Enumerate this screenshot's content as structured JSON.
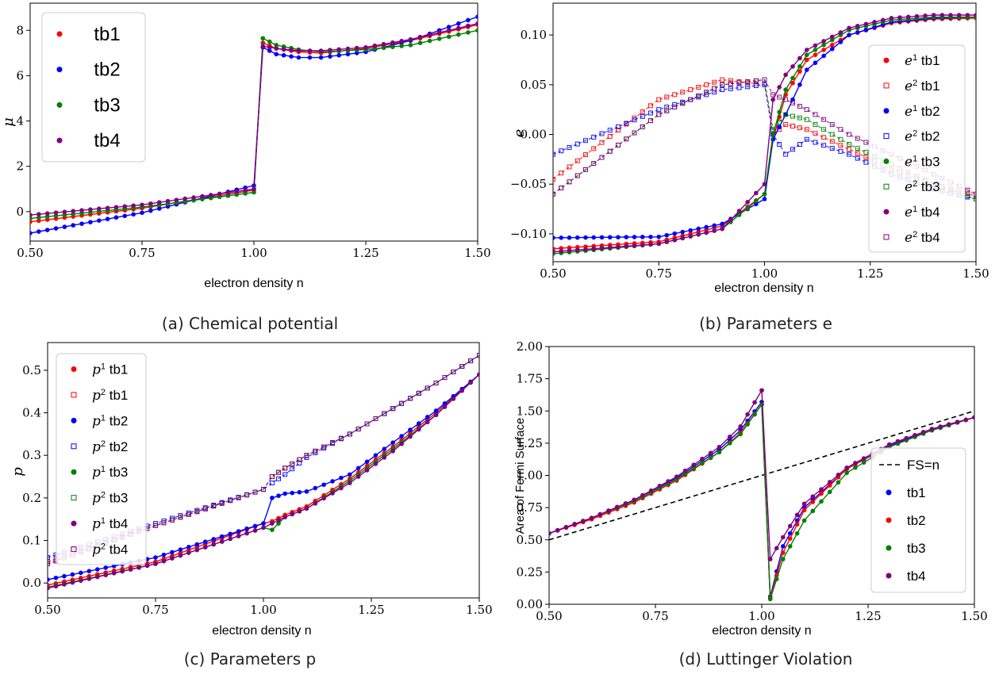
{
  "colors": {
    "tb1": "#ff0000",
    "tb2": "#0000ff",
    "tb3": "#008000",
    "tb4": "#800080"
  },
  "chart_data": [
    {
      "id": "a",
      "type": "line",
      "caption": "(a) Chemical potential",
      "xlabel": "electron density n",
      "ylabel": "μ",
      "xlim": [
        0.5,
        1.5
      ],
      "ylim": [
        -1.3,
        9.2
      ],
      "xticks": [
        "0.50",
        "0.75",
        "1.00",
        "1.25",
        "1.50"
      ],
      "yticks": [
        "0",
        "2",
        "4",
        "6",
        "8"
      ],
      "legend_position": "upper-left",
      "series": [
        {
          "name": "tb1",
          "color": "#ff0000",
          "x": [
            0.5,
            0.75,
            1.0,
            1.02,
            1.05,
            1.1,
            1.15,
            1.25,
            1.35,
            1.5
          ],
          "y": [
            -0.45,
            0.15,
            0.95,
            7.45,
            7.2,
            7.05,
            7.0,
            7.2,
            7.55,
            8.25
          ]
        },
        {
          "name": "tb2",
          "color": "#0000ff",
          "x": [
            0.5,
            0.75,
            1.0,
            1.02,
            1.05,
            1.1,
            1.15,
            1.25,
            1.35,
            1.5
          ],
          "y": [
            -0.95,
            -0.05,
            1.15,
            7.25,
            6.95,
            6.8,
            6.8,
            7.05,
            7.55,
            8.6
          ]
        },
        {
          "name": "tb3",
          "color": "#008000",
          "x": [
            0.5,
            0.75,
            1.0,
            1.02,
            1.05,
            1.1,
            1.15,
            1.25,
            1.35,
            1.5
          ],
          "y": [
            -0.3,
            0.2,
            0.85,
            7.65,
            7.35,
            7.15,
            7.05,
            7.15,
            7.35,
            8.0
          ]
        },
        {
          "name": "tb4",
          "color": "#800080",
          "x": [
            0.5,
            0.75,
            1.0,
            1.02,
            1.05,
            1.1,
            1.15,
            1.25,
            1.35,
            1.5
          ],
          "y": [
            -0.15,
            0.3,
            1.0,
            7.3,
            7.2,
            7.1,
            7.1,
            7.25,
            7.6,
            8.3
          ]
        }
      ]
    },
    {
      "id": "b",
      "type": "line",
      "caption": "(b) Parameters e",
      "xlabel": "electron density n",
      "ylabel": "e",
      "xlim": [
        0.5,
        1.5
      ],
      "ylim": [
        -0.128,
        0.132
      ],
      "xticks": [
        "0.50",
        "0.75",
        "1.00",
        "1.25",
        "1.50"
      ],
      "yticks": [
        "−0.10",
        "−0.05",
        "0.00",
        "0.05",
        "0.10"
      ],
      "legend_position": "right",
      "series": [
        {
          "name": "e1 tb1",
          "color": "#ff0000",
          "marker": "o",
          "x": [
            0.5,
            0.75,
            0.9,
            1.0,
            1.02,
            1.05,
            1.1,
            1.2,
            1.3,
            1.4,
            1.5
          ],
          "y": [
            -0.115,
            -0.108,
            -0.092,
            -0.06,
            -0.005,
            0.04,
            0.075,
            0.1,
            0.112,
            0.116,
            0.117
          ]
        },
        {
          "name": "e2 tb1",
          "color": "#ff0000",
          "marker": "s",
          "x": [
            0.5,
            0.75,
            0.9,
            1.0,
            1.02,
            1.05,
            1.1,
            1.2,
            1.3,
            1.4,
            1.5
          ],
          "y": [
            -0.045,
            0.035,
            0.055,
            0.05,
            0.0,
            0.01,
            0.005,
            -0.015,
            -0.035,
            -0.05,
            -0.062
          ]
        },
        {
          "name": "e1 tb2",
          "color": "#0000ff",
          "marker": "o",
          "x": [
            0.5,
            0.75,
            0.9,
            1.0,
            1.02,
            1.05,
            1.1,
            1.2,
            1.3,
            1.4,
            1.5
          ],
          "y": [
            -0.104,
            -0.103,
            -0.09,
            -0.065,
            -0.005,
            0.02,
            0.065,
            0.1,
            0.113,
            0.117,
            0.118
          ]
        },
        {
          "name": "e2 tb2",
          "color": "#0000ff",
          "marker": "s",
          "x": [
            0.5,
            0.75,
            0.9,
            1.0,
            1.02,
            1.05,
            1.1,
            1.2,
            1.3,
            1.4,
            1.5
          ],
          "y": [
            -0.02,
            0.025,
            0.045,
            0.05,
            0.0,
            -0.02,
            -0.005,
            -0.02,
            -0.04,
            -0.055,
            -0.065
          ]
        },
        {
          "name": "e1 tb3",
          "color": "#008000",
          "marker": "o",
          "x": [
            0.5,
            0.75,
            0.9,
            1.0,
            1.02,
            1.05,
            1.1,
            1.2,
            1.3,
            1.4,
            1.5
          ],
          "y": [
            -0.12,
            -0.11,
            -0.095,
            -0.06,
            0.0,
            0.045,
            0.08,
            0.105,
            0.115,
            0.118,
            0.118
          ]
        },
        {
          "name": "e2 tb3",
          "color": "#008000",
          "marker": "s",
          "x": [
            0.5,
            0.75,
            0.9,
            1.0,
            1.02,
            1.05,
            1.1,
            1.2,
            1.3,
            1.4,
            1.5
          ],
          "y": [
            -0.06,
            0.02,
            0.05,
            0.055,
            0.005,
            0.02,
            0.015,
            -0.01,
            -0.03,
            -0.05,
            -0.065
          ]
        },
        {
          "name": "e1 tb4",
          "color": "#800080",
          "marker": "o",
          "x": [
            0.5,
            0.75,
            0.9,
            1.0,
            1.02,
            1.05,
            1.1,
            1.2,
            1.3,
            1.4,
            1.5
          ],
          "y": [
            -0.118,
            -0.11,
            -0.095,
            -0.05,
            0.035,
            0.06,
            0.085,
            0.107,
            0.117,
            0.12,
            0.12
          ]
        },
        {
          "name": "e2 tb4",
          "color": "#800080",
          "marker": "s",
          "x": [
            0.5,
            0.75,
            0.9,
            1.0,
            1.02,
            1.05,
            1.1,
            1.2,
            1.3,
            1.4,
            1.5
          ],
          "y": [
            -0.06,
            0.02,
            0.05,
            0.055,
            0.04,
            0.035,
            0.025,
            0.0,
            -0.02,
            -0.04,
            -0.06
          ]
        }
      ]
    },
    {
      "id": "c",
      "type": "line",
      "caption": "(c) Parameters p",
      "xlabel": "electron density n",
      "ylabel": "p",
      "xlim": [
        0.5,
        1.5
      ],
      "ylim": [
        -0.035,
        0.565
      ],
      "xticks": [
        "0.50",
        "0.75",
        "1.00",
        "1.25",
        "1.50"
      ],
      "yticks": [
        "0.0",
        "0.1",
        "0.2",
        "0.3",
        "0.4",
        "0.5"
      ],
      "legend_position": "upper-left",
      "series": [
        {
          "name": "p1 tb1",
          "color": "#ff0000",
          "marker": "o",
          "x": [
            0.5,
            0.75,
            1.0,
            1.02,
            1.05,
            1.1,
            1.2,
            1.3,
            1.4,
            1.5
          ],
          "y": [
            -0.005,
            0.05,
            0.14,
            0.145,
            0.16,
            0.18,
            0.245,
            0.32,
            0.4,
            0.49
          ]
        },
        {
          "name": "p2 tb1",
          "color": "#ff0000",
          "marker": "s",
          "x": [
            0.5,
            0.75,
            1.0,
            1.02,
            1.05,
            1.1,
            1.2,
            1.3,
            1.4,
            1.5
          ],
          "y": [
            0.05,
            0.135,
            0.22,
            0.25,
            0.27,
            0.3,
            0.35,
            0.41,
            0.47,
            0.535
          ]
        },
        {
          "name": "p1 tb2",
          "color": "#0000ff",
          "marker": "o",
          "x": [
            0.5,
            0.75,
            1.0,
            1.02,
            1.05,
            1.1,
            1.2,
            1.3,
            1.4,
            1.5
          ],
          "y": [
            0.008,
            0.06,
            0.14,
            0.2,
            0.21,
            0.215,
            0.255,
            0.33,
            0.405,
            0.49
          ]
        },
        {
          "name": "p2 tb2",
          "color": "#0000ff",
          "marker": "s",
          "x": [
            0.5,
            0.75,
            1.0,
            1.02,
            1.05,
            1.1,
            1.2,
            1.3,
            1.4,
            1.5
          ],
          "y": [
            0.06,
            0.14,
            0.22,
            0.235,
            0.255,
            0.295,
            0.35,
            0.41,
            0.47,
            0.535
          ]
        },
        {
          "name": "p1 tb3",
          "color": "#008000",
          "marker": "o",
          "x": [
            0.5,
            0.75,
            1.0,
            1.02,
            1.05,
            1.1,
            1.2,
            1.3,
            1.4,
            1.5
          ],
          "y": [
            -0.01,
            0.045,
            0.13,
            0.125,
            0.155,
            0.175,
            0.24,
            0.315,
            0.395,
            0.49
          ]
        },
        {
          "name": "p2 tb3",
          "color": "#008000",
          "marker": "s",
          "x": [
            0.5,
            0.75,
            1.0,
            1.02,
            1.05,
            1.1,
            1.2,
            1.3,
            1.4,
            1.5
          ],
          "y": [
            0.045,
            0.135,
            0.22,
            0.25,
            0.27,
            0.3,
            0.35,
            0.41,
            0.47,
            0.535
          ]
        },
        {
          "name": "p1 tb4",
          "color": "#800080",
          "marker": "o",
          "x": [
            0.5,
            0.75,
            1.0,
            1.02,
            1.05,
            1.1,
            1.2,
            1.3,
            1.4,
            1.5
          ],
          "y": [
            -0.012,
            0.045,
            0.13,
            0.14,
            0.155,
            0.175,
            0.235,
            0.31,
            0.395,
            0.49
          ]
        },
        {
          "name": "p2 tb4",
          "color": "#800080",
          "marker": "s",
          "x": [
            0.5,
            0.75,
            1.0,
            1.02,
            1.05,
            1.1,
            1.2,
            1.3,
            1.4,
            1.5
          ],
          "y": [
            0.045,
            0.135,
            0.22,
            0.25,
            0.27,
            0.3,
            0.35,
            0.41,
            0.47,
            0.535
          ]
        }
      ]
    },
    {
      "id": "d",
      "type": "line",
      "caption": "(d) Luttinger Violation",
      "xlabel": "electron density n",
      "ylabel": "Area of Fermi Surface",
      "xlim": [
        0.5,
        1.5
      ],
      "ylim": [
        0.0,
        2.0
      ],
      "xticks": [
        "0.50",
        "0.75",
        "1.00",
        "1.25",
        "1.50"
      ],
      "yticks": [
        "0.00",
        "0.25",
        "0.50",
        "0.75",
        "1.00",
        "1.25",
        "1.50",
        "1.75",
        "2.00"
      ],
      "legend_position": "right",
      "reference_line": {
        "name": "FS=n",
        "x": [
          0.5,
          1.5
        ],
        "y": [
          0.5,
          1.5
        ]
      },
      "series": [
        {
          "name": "tb1",
          "color": "#0000ff",
          "x": [
            0.5,
            0.6,
            0.7,
            0.8,
            0.9,
            0.95,
            1.0,
            1.02,
            1.05,
            1.1,
            1.2,
            1.3,
            1.4,
            1.5
          ],
          "y": [
            0.55,
            0.67,
            0.81,
            0.98,
            1.2,
            1.35,
            1.57,
            0.06,
            0.45,
            0.75,
            1.05,
            1.23,
            1.35,
            1.45
          ]
        },
        {
          "name": "tb2",
          "color": "#ff0000",
          "x": [
            0.5,
            0.6,
            0.7,
            0.8,
            0.9,
            0.95,
            1.0,
            1.02,
            1.05,
            1.1,
            1.2,
            1.3,
            1.4,
            1.5
          ],
          "y": [
            0.55,
            0.66,
            0.79,
            0.96,
            1.18,
            1.33,
            1.55,
            0.05,
            0.4,
            0.73,
            1.05,
            1.24,
            1.36,
            1.45
          ]
        },
        {
          "name": "tb3",
          "color": "#008000",
          "x": [
            0.5,
            0.6,
            0.7,
            0.8,
            0.9,
            0.95,
            1.0,
            1.02,
            1.05,
            1.1,
            1.2,
            1.3,
            1.4,
            1.5
          ],
          "y": [
            0.55,
            0.67,
            0.8,
            0.97,
            1.18,
            1.32,
            1.55,
            0.04,
            0.35,
            0.65,
            1.02,
            1.22,
            1.35,
            1.45
          ]
        },
        {
          "name": "tb4",
          "color": "#800080",
          "x": [
            0.5,
            0.6,
            0.7,
            0.8,
            0.9,
            0.95,
            1.0,
            1.0,
            1.02,
            1.05,
            1.1,
            1.2,
            1.3,
            1.4,
            1.5
          ],
          "y": [
            0.55,
            0.67,
            0.81,
            0.99,
            1.22,
            1.38,
            1.66,
            1.66,
            0.35,
            0.52,
            0.78,
            1.06,
            1.24,
            1.36,
            1.45
          ]
        }
      ]
    }
  ]
}
